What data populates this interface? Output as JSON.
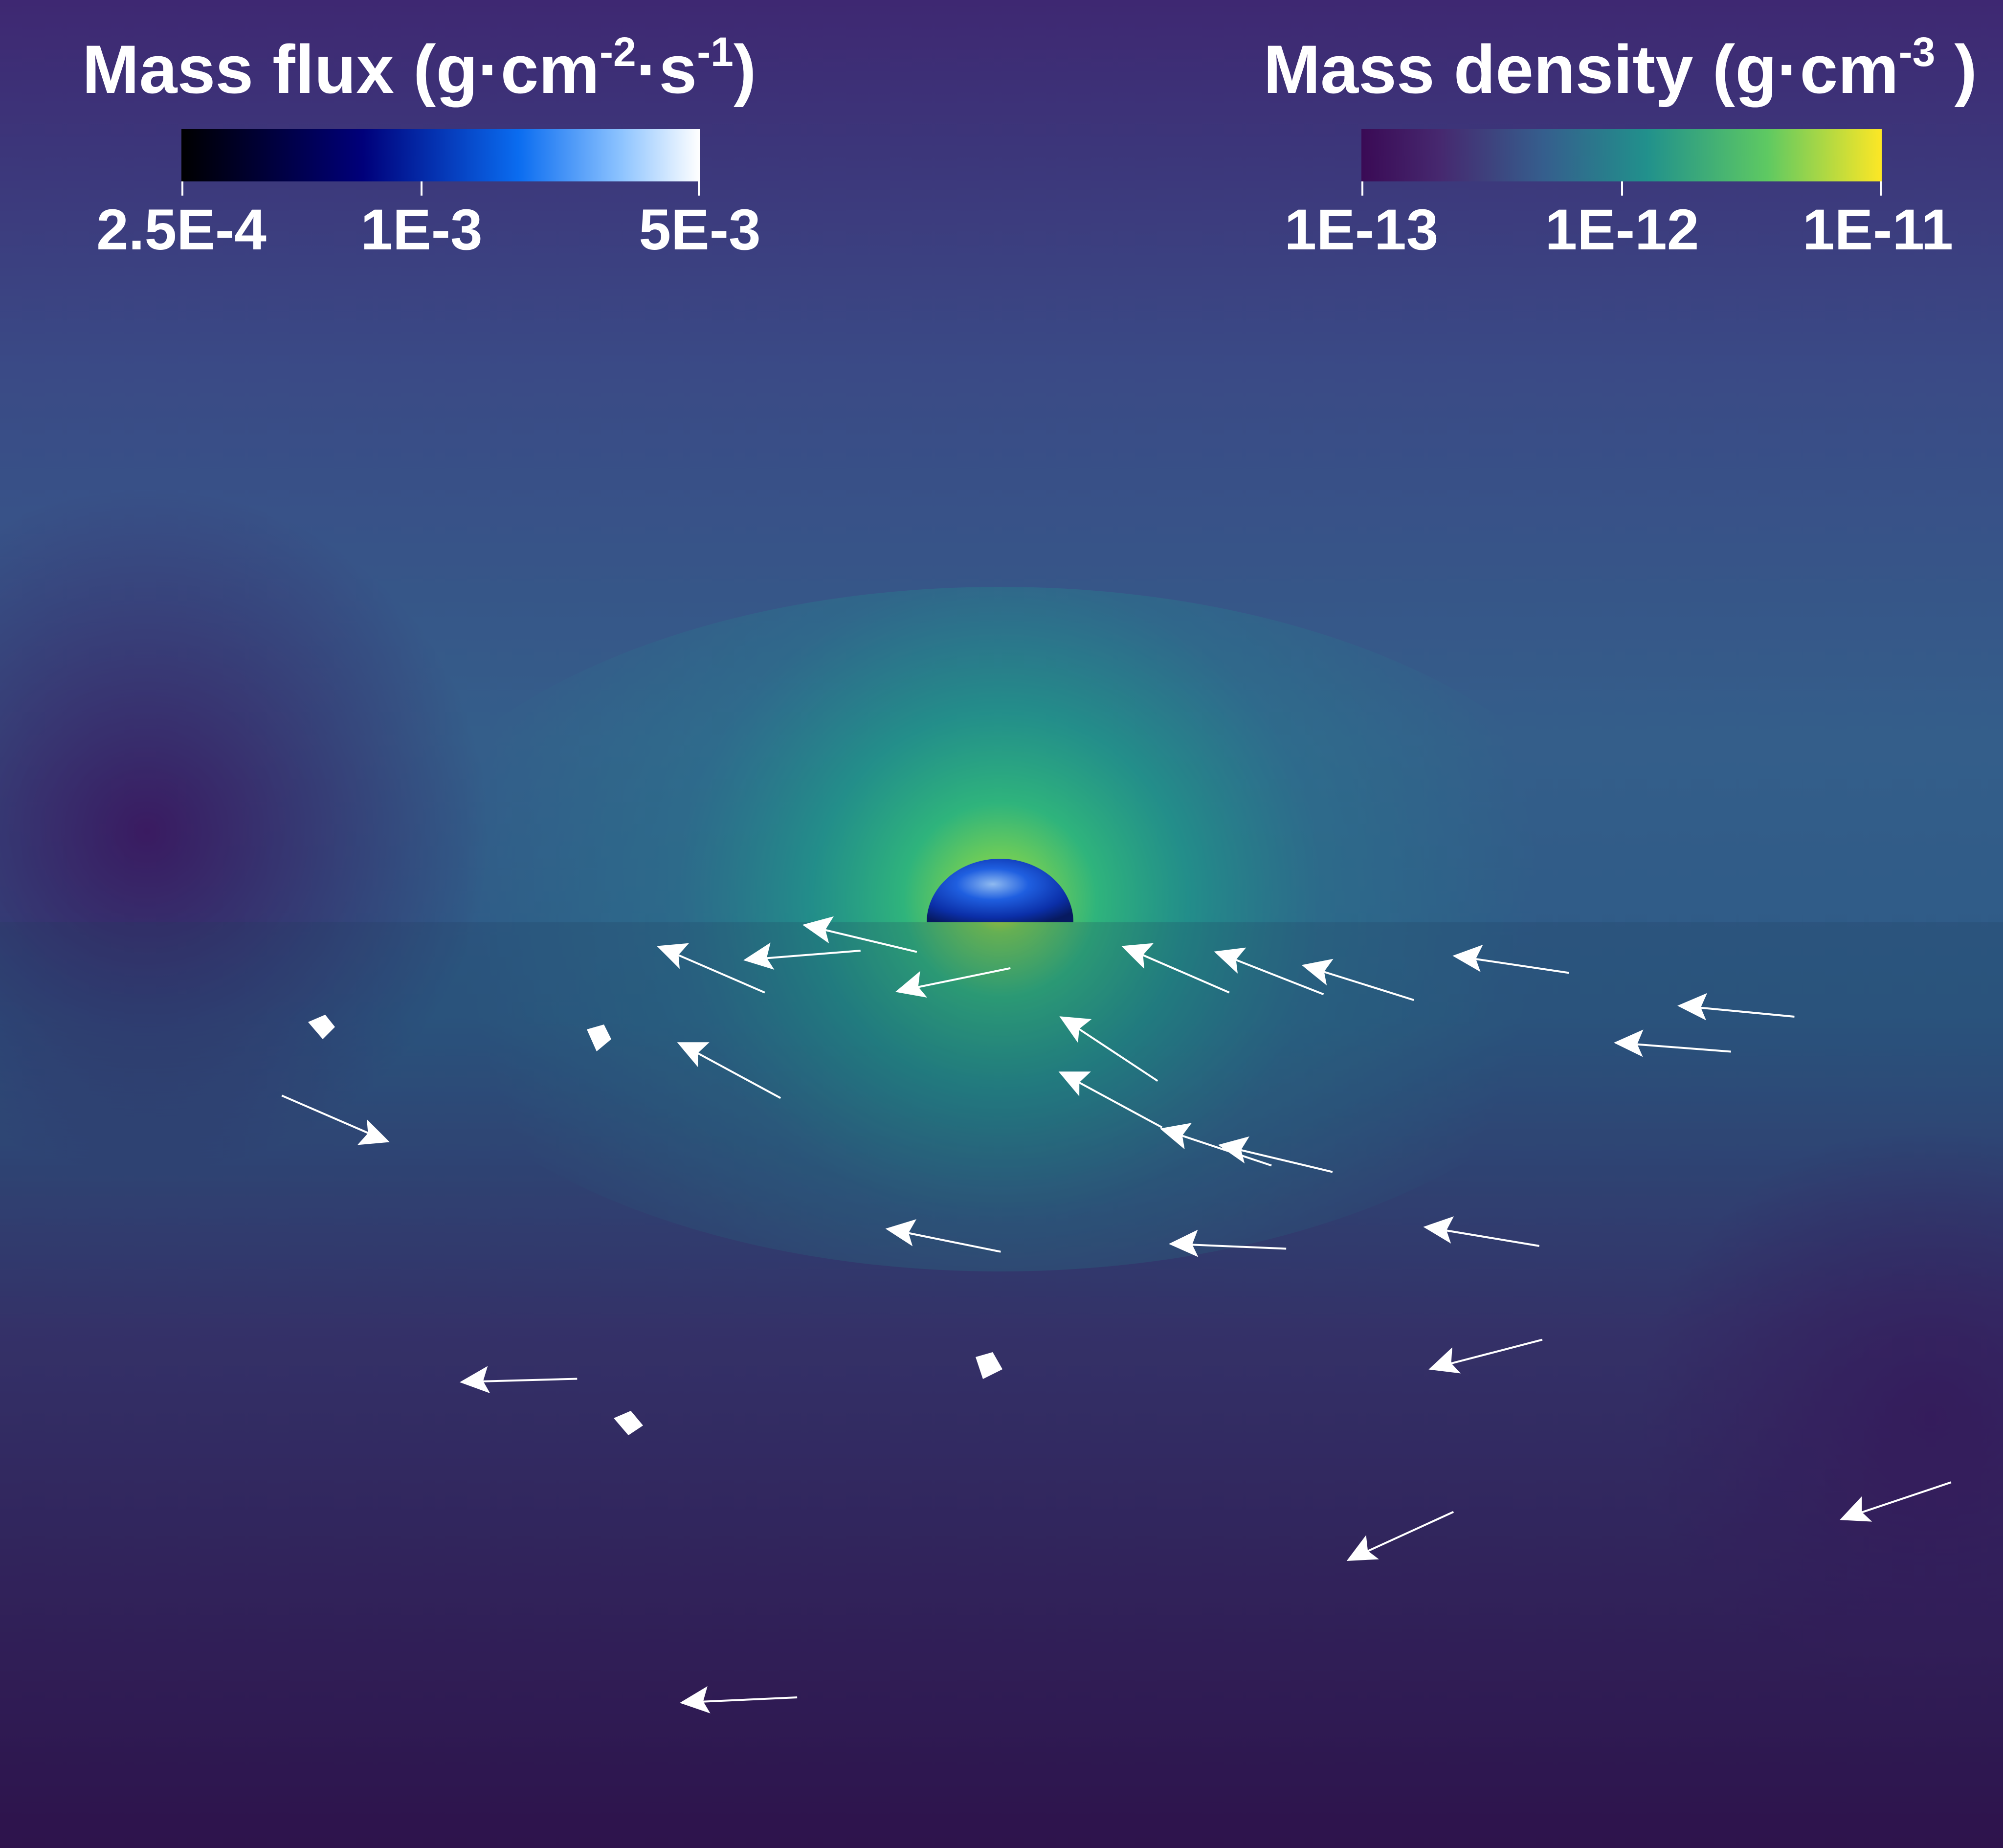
{
  "left_colorbar": {
    "title_parts": [
      "Mass flux (g·cm",
      "-2",
      "·s",
      "-1",
      ")"
    ],
    "ticks": [
      "2.5E-4",
      "1E-3",
      "5E-3"
    ]
  },
  "right_colorbar": {
    "title_parts": [
      "Mass density (g·cm",
      "-3",
      " )"
    ],
    "ticks": [
      "1E-13",
      "1E-12",
      "1E-11"
    ]
  }
}
